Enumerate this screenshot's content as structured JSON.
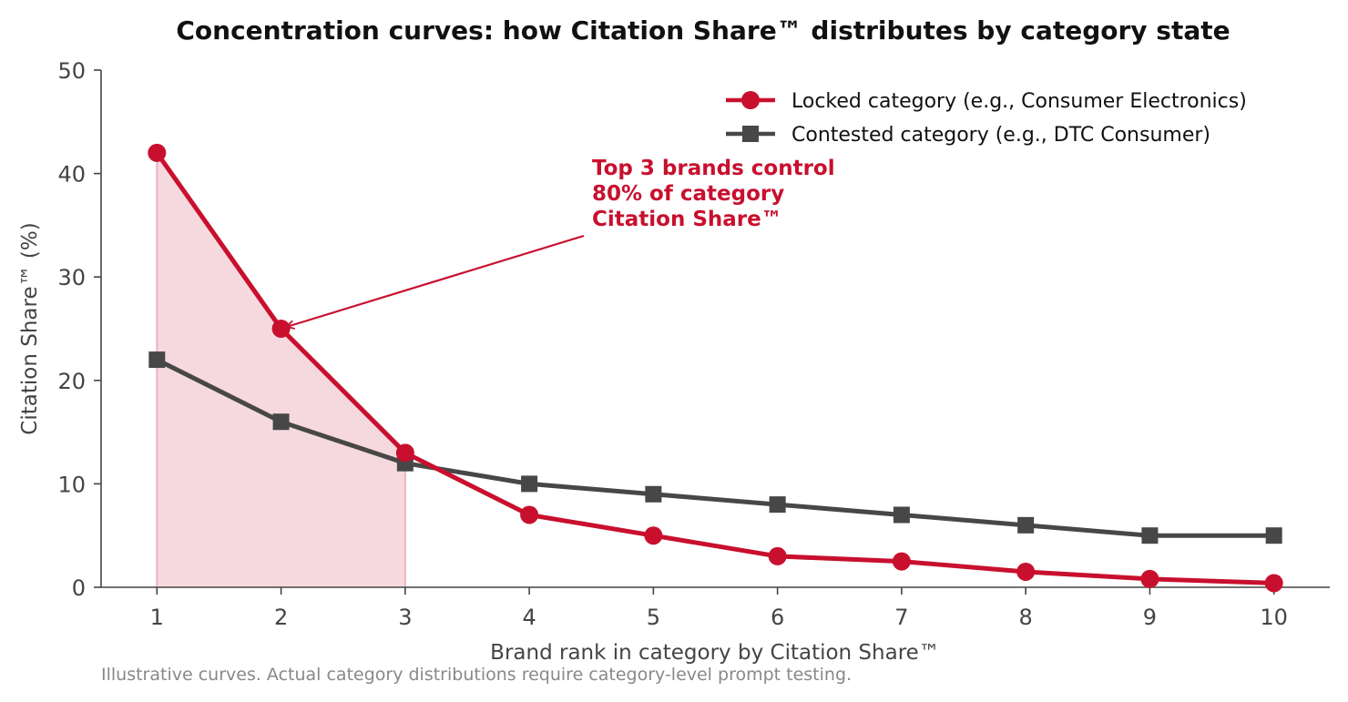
{
  "chart_data": {
    "type": "line",
    "title": "Concentration curves: how Citation Share™ distributes by category state",
    "xlabel": "Brand rank in category by Citation Share™",
    "ylabel": "Citation Share™ (%)",
    "x": [
      1,
      2,
      3,
      4,
      5,
      6,
      7,
      8,
      9,
      10
    ],
    "xlim": [
      0.55,
      10.45
    ],
    "ylim": [
      0,
      50
    ],
    "yticks": [
      0,
      10,
      20,
      30,
      40,
      50
    ],
    "grid": false,
    "legend_position": "top-right",
    "series": [
      {
        "name": "Locked category (e.g., Consumer Electronics)",
        "values": [
          42,
          25,
          13,
          7,
          5,
          3,
          2.5,
          1.5,
          0.8,
          0.4
        ],
        "color": "#c8102e",
        "marker": "circle"
      },
      {
        "name": "Contested category (e.g., DTC Consumer)",
        "values": [
          22,
          16,
          12,
          10,
          9,
          8,
          7,
          6,
          5,
          5
        ],
        "color": "#474747",
        "marker": "square"
      }
    ],
    "shaded_region": {
      "series": 0,
      "x_from": 1,
      "x_to": 3,
      "color": "#f6d9de"
    },
    "annotation": {
      "lines": [
        "Top 3 brands control",
        "80% of category",
        "Citation Share™"
      ],
      "color": "#c8102e",
      "arrow_target": {
        "x": 2,
        "y": 25
      }
    },
    "footnote": "Illustrative curves. Actual category distributions require category-level prompt testing."
  }
}
